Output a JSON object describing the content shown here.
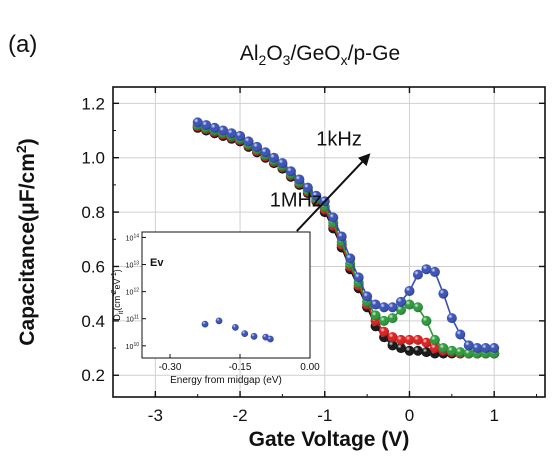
{
  "panel_label": "(a)",
  "chart_data": {
    "type": "line",
    "title_parts": {
      "base1": "Al",
      "sub1": "2",
      "base2": "O",
      "sub2": "3",
      "mid": "/GeO",
      "sub3": "x",
      "tail": "/p-Ge"
    },
    "xlabel": "Gate Voltage (V)",
    "ylabel_parts": {
      "base": "Capacitance(",
      "mu": "μ",
      "mid": "F/cm",
      "sup": "2",
      "tail": ")"
    },
    "xlim": [
      -3.5,
      1.6
    ],
    "ylim": [
      0.12,
      1.26
    ],
    "xticks": [
      -3,
      -2,
      -1,
      0,
      1
    ],
    "xtick_labels": [
      "-3",
      "-2",
      "-1",
      "0",
      "1"
    ],
    "yticks": [
      0.2,
      0.4,
      0.6,
      0.8,
      1.0,
      1.2
    ],
    "ytick_labels": [
      "0.2",
      "0.4",
      "0.6",
      "0.8",
      "1.0",
      "1.2"
    ],
    "grid": true,
    "annotations": [
      {
        "text": "1kHz",
        "x": -1.1,
        "y": 1.045
      },
      {
        "text": "1MHz",
        "x": -1.65,
        "y": 0.82
      }
    ],
    "arrow": {
      "from": [
        -1.33,
        0.73
      ],
      "to": [
        -0.48,
        1.01
      ]
    },
    "series": [
      {
        "color": "#111111",
        "x": [
          -2.5,
          -2.4,
          -2.3,
          -2.2,
          -2.1,
          -2.0,
          -1.9,
          -1.8,
          -1.7,
          -1.6,
          -1.5,
          -1.4,
          -1.3,
          -1.2,
          -1.1,
          -1.0,
          -0.9,
          -0.8,
          -0.7,
          -0.6,
          -0.5,
          -0.4,
          -0.3,
          -0.2,
          -0.1,
          0.0,
          0.1,
          0.2,
          0.3,
          0.4,
          0.5,
          0.6,
          0.7,
          0.8,
          0.9,
          1.0
        ],
        "y": [
          1.11,
          1.1,
          1.09,
          1.08,
          1.07,
          1.06,
          1.04,
          1.02,
          1.0,
          0.98,
          0.96,
          0.93,
          0.9,
          0.87,
          0.84,
          0.8,
          0.74,
          0.67,
          0.59,
          0.52,
          0.45,
          0.38,
          0.34,
          0.31,
          0.3,
          0.29,
          0.29,
          0.285,
          0.28,
          0.28,
          0.28,
          0.28,
          0.28,
          0.28,
          0.28,
          0.28
        ]
      },
      {
        "color": "#dd1c1c",
        "x": [
          -2.5,
          -2.4,
          -2.3,
          -2.2,
          -2.1,
          -2.0,
          -1.9,
          -1.8,
          -1.7,
          -1.6,
          -1.5,
          -1.4,
          -1.3,
          -1.2,
          -1.1,
          -1.0,
          -0.9,
          -0.8,
          -0.7,
          -0.6,
          -0.5,
          -0.4,
          -0.3,
          -0.2,
          -0.1,
          0.0,
          0.1,
          0.2,
          0.3,
          0.4,
          0.5,
          0.6,
          0.7,
          0.8,
          0.9,
          1.0
        ],
        "y": [
          1.115,
          1.105,
          1.095,
          1.085,
          1.075,
          1.065,
          1.045,
          1.025,
          1.005,
          0.985,
          0.965,
          0.935,
          0.905,
          0.875,
          0.845,
          0.81,
          0.75,
          0.68,
          0.6,
          0.53,
          0.46,
          0.4,
          0.36,
          0.34,
          0.33,
          0.33,
          0.33,
          0.32,
          0.3,
          0.29,
          0.285,
          0.28,
          0.28,
          0.28,
          0.28,
          0.28
        ]
      },
      {
        "color": "#2a9a3a",
        "x": [
          -2.5,
          -2.4,
          -2.3,
          -2.2,
          -2.1,
          -2.0,
          -1.9,
          -1.8,
          -1.7,
          -1.6,
          -1.5,
          -1.4,
          -1.3,
          -1.2,
          -1.1,
          -1.0,
          -0.9,
          -0.8,
          -0.7,
          -0.6,
          -0.5,
          -0.4,
          -0.3,
          -0.2,
          -0.1,
          0.0,
          0.1,
          0.2,
          0.3,
          0.4,
          0.5,
          0.6,
          0.7,
          0.8,
          0.9,
          1.0
        ],
        "y": [
          1.12,
          1.11,
          1.1,
          1.09,
          1.08,
          1.07,
          1.05,
          1.03,
          1.01,
          0.99,
          0.97,
          0.94,
          0.91,
          0.88,
          0.85,
          0.82,
          0.76,
          0.69,
          0.61,
          0.54,
          0.47,
          0.42,
          0.4,
          0.41,
          0.44,
          0.46,
          0.45,
          0.4,
          0.33,
          0.3,
          0.29,
          0.285,
          0.28,
          0.28,
          0.28,
          0.28
        ]
      },
      {
        "color": "#3750b8",
        "x": [
          -2.5,
          -2.4,
          -2.3,
          -2.2,
          -2.1,
          -2.0,
          -1.9,
          -1.8,
          -1.7,
          -1.6,
          -1.5,
          -1.4,
          -1.3,
          -1.2,
          -1.1,
          -1.0,
          -0.9,
          -0.8,
          -0.7,
          -0.6,
          -0.5,
          -0.4,
          -0.3,
          -0.2,
          -0.1,
          0.0,
          0.1,
          0.2,
          0.3,
          0.4,
          0.5,
          0.6,
          0.7,
          0.8,
          0.9,
          1.0
        ],
        "y": [
          1.13,
          1.12,
          1.11,
          1.1,
          1.09,
          1.08,
          1.06,
          1.04,
          1.02,
          1.0,
          0.98,
          0.95,
          0.92,
          0.89,
          0.86,
          0.84,
          0.78,
          0.71,
          0.63,
          0.56,
          0.49,
          0.46,
          0.45,
          0.45,
          0.47,
          0.51,
          0.57,
          0.59,
          0.58,
          0.5,
          0.41,
          0.35,
          0.31,
          0.3,
          0.3,
          0.3
        ]
      }
    ],
    "inset": {
      "type": "scatter",
      "xlabel": "Energy from midgap (eV)",
      "ylabel_parts": {
        "base": "D",
        "sub": "it",
        "mid": "(cm",
        "sup1": "-2",
        "mid2": "eV",
        "sup2": "-1",
        "tail": ")"
      },
      "label": "Ev",
      "xlim": [
        -0.36,
        0.0
      ],
      "ylog_exponent_lim": [
        9.55,
        14.2
      ],
      "xticks": [
        -0.3,
        -0.15,
        0.0
      ],
      "xtick_labels": [
        "-0.30",
        "-0.15",
        "0.00"
      ],
      "yticks_exp": [
        10,
        11,
        12,
        13,
        14
      ],
      "ytick_labels_base": "10",
      "ytick_labels_exp": [
        "10",
        "11",
        "12",
        "13",
        "14"
      ],
      "color": "#3750b8",
      "points": {
        "x": [
          -0.225,
          -0.195,
          -0.16,
          -0.14,
          -0.12,
          -0.095,
          -0.085
        ],
        "y_exp": [
          10.8,
          10.92,
          10.68,
          10.45,
          10.35,
          10.32,
          10.25
        ]
      }
    }
  }
}
